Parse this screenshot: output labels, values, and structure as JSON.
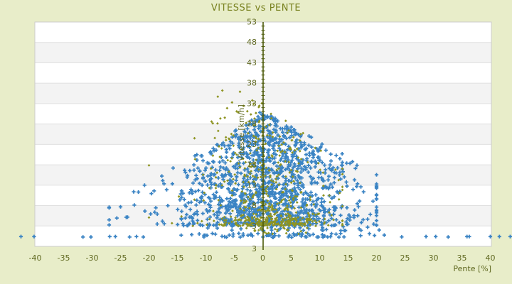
{
  "colors": {
    "background": "#e8edc9",
    "title": "#78811f",
    "tick_label": "#5f6820",
    "axis_line": "#4c5a0a",
    "band_light": "#ffffff",
    "band_dark": "#f3f3f3",
    "gridline": "#e0e0e0",
    "plot_border": "#cccccc",
    "blue_series": "#3b84c4",
    "olive_series": "#8e9422"
  },
  "chart_data": {
    "type": "scatter",
    "title": "VITESSE vs PENTE",
    "xlabel": "Pente [%]",
    "ylabel": "Vitesse [km/h]",
    "xlim": [
      -40.2,
      40.2
    ],
    "ylim": [
      -2,
      53
    ],
    "x_ticks": [
      -40,
      -35,
      -30,
      -25,
      -20,
      -15,
      -10,
      -5,
      0,
      5,
      10,
      15,
      20,
      25,
      30,
      35,
      40
    ],
    "y_ticks": [
      53,
      48,
      43,
      38,
      33,
      28,
      23,
      18,
      13,
      8,
      3
    ],
    "y_axis_extra_bottom_label": "3",
    "grid": "horizontal-bands",
    "legend": "none",
    "y_axis_position": "crossing-at-x-0",
    "series": [
      {
        "name": "blue",
        "color": "#3b84c4",
        "marker": "plus",
        "approx_count": 1470,
        "distribution": {
          "cloud": {
            "n": 1350,
            "x_mean": 1.2,
            "x_sigma": 6.8,
            "wide_p": 0.18,
            "x_sigma_wide": 12.5,
            "x_clamp": [
              -27,
              20
            ],
            "apex_x": 0.3,
            "apex_y": 30.8,
            "slope": 0.62,
            "left_droop": 0.22,
            "right_droop": 0.1,
            "h_floor": 4.5,
            "y_min": 3.1,
            "y_exp": 1.35
          },
          "strips": [
            {
              "n": 70,
              "x_range": [
                -21,
                26
              ],
              "y_range": [
                0.2,
                1.2
              ],
              "center_weight": true
            },
            {
              "n": 30,
              "x_range": [
                -18,
                24
              ],
              "y_range": [
                1.8,
                2.9
              ],
              "center_weight": true
            }
          ],
          "points": [
            [
              -42.5,
              0.4
            ],
            [
              -40.2,
              0.4
            ],
            [
              -31.6,
              0.3
            ],
            [
              -30.2,
              0.3
            ],
            [
              -26.9,
              0.4
            ],
            [
              -25.9,
              0.4
            ],
            [
              -23.4,
              0.3
            ],
            [
              -22.2,
              0.4
            ],
            [
              -21.0,
              0.3
            ],
            [
              28.7,
              0.4
            ],
            [
              30.4,
              0.4
            ],
            [
              32.6,
              0.3
            ],
            [
              35.9,
              0.4
            ],
            [
              36.3,
              0.4
            ],
            [
              40.0,
              0.4
            ],
            [
              41.6,
              0.4
            ],
            [
              43.5,
              0.4
            ],
            [
              -0.5,
              30.8
            ],
            [
              0.8,
              29.9
            ],
            [
              -1.2,
              28.9
            ],
            [
              2.2,
              27.6
            ]
          ]
        }
      },
      {
        "name": "olive",
        "color": "#8e9422",
        "marker": "diamond",
        "approx_count": 585,
        "distribution": {
          "cloud": {
            "n": 430,
            "x_mean": 0.6,
            "x_sigma": 4.9,
            "wide_p": 0.15,
            "x_sigma_wide": 8.5,
            "x_clamp": [
              -20,
              14
            ],
            "apex_x": -3,
            "apex_y": 36.3,
            "slope": 0.95,
            "left_droop": 0.1,
            "right_droop": 0.1,
            "h_floor": 4.2,
            "y_min": 3.0,
            "y_exp": 1.7
          },
          "strips": [
            {
              "n": 120,
              "x_range": [
                -7,
                11
              ],
              "y_range": [
                3.0,
                5.2
              ],
              "center_weight": true
            },
            {
              "n": 25,
              "x_range": [
                -5,
                9
              ],
              "y_range": [
                1.0,
                2.6
              ],
              "center_weight": true
            }
          ],
          "points": [
            [
              -7.1,
              36.2
            ],
            [
              -4.0,
              35.9
            ],
            [
              -7.9,
              34.7
            ],
            [
              -5.4,
              33.3
            ],
            [
              -9.0,
              28.6
            ],
            [
              -12.0,
              24.5
            ],
            [
              12.8,
              16.8
            ],
            [
              13.4,
              9.5
            ]
          ]
        }
      }
    ]
  }
}
